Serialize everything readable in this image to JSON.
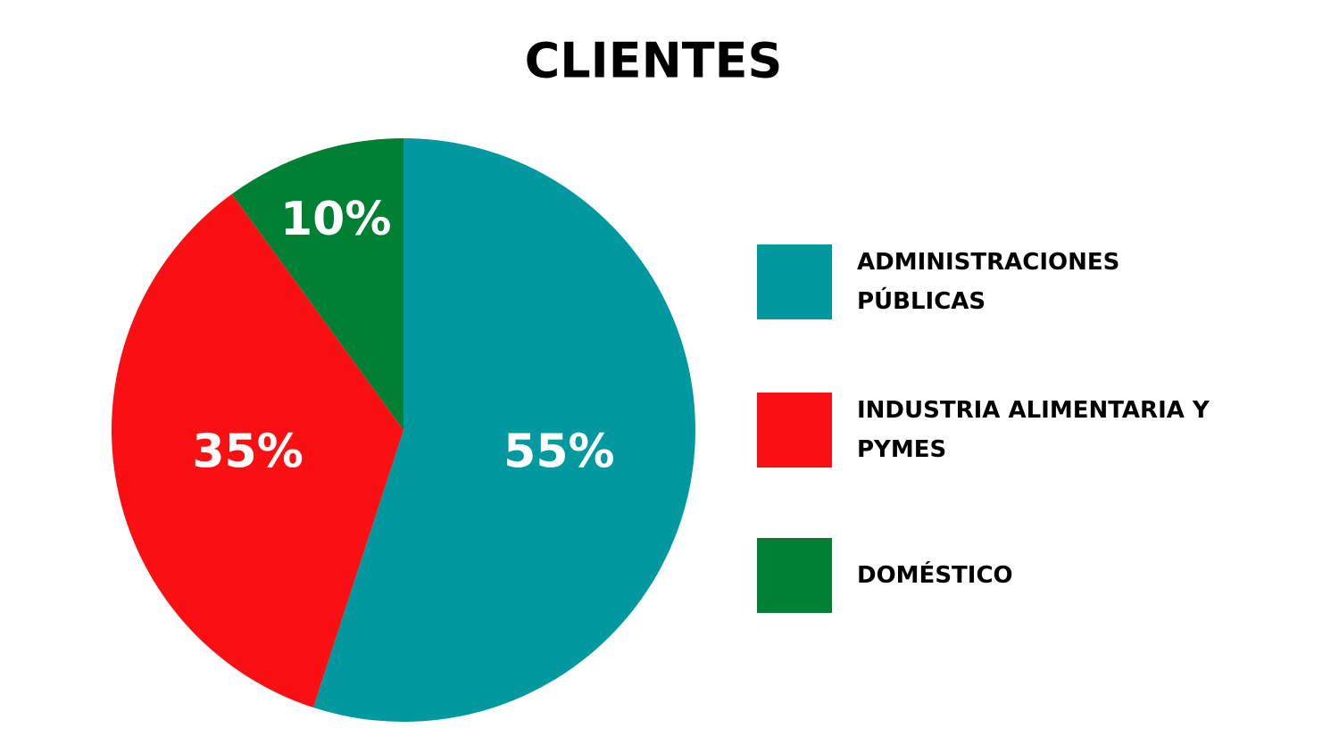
{
  "chart_data": {
    "type": "pie",
    "title": "CLIENTES",
    "categories": [
      "ADMINISTRACIONES PÚBLICAS",
      "INDUSTRIA ALIMENTARIA Y PYMES",
      "DOMÉSTICO"
    ],
    "values": [
      55,
      35,
      10
    ],
    "value_labels": [
      "55%",
      "35%",
      "10%"
    ],
    "colors": [
      "#00999f",
      "#fa0f12",
      "#008033"
    ],
    "legend": "right"
  }
}
